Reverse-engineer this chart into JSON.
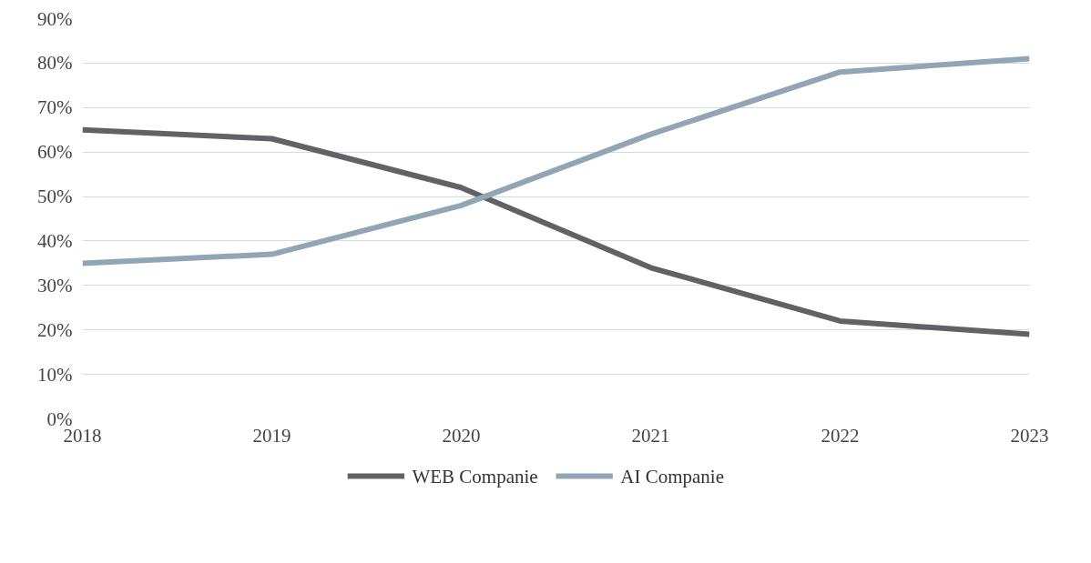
{
  "chart_data": {
    "type": "line",
    "x": [
      2018,
      2019,
      2020,
      2021,
      2022,
      2023
    ],
    "series": [
      {
        "name": "WEB Companie",
        "color": "#616166",
        "values": [
          65,
          63,
          52,
          34,
          22,
          19
        ]
      },
      {
        "name": "AI Companie",
        "color": "#91a6b5",
        "values": [
          35,
          37,
          48,
          64,
          78,
          81
        ]
      }
    ],
    "xlim": [
      2018,
      2023
    ],
    "xticks": [
      2018,
      2019,
      2020,
      2021,
      2022,
      2023
    ],
    "ylim": [
      0,
      90
    ],
    "yticks": [
      {
        "value": 0,
        "label": "0%"
      },
      {
        "value": 10,
        "label": "10%"
      },
      {
        "value": 20,
        "label": "20%"
      },
      {
        "value": 30,
        "label": "30%"
      },
      {
        "value": 40,
        "label": "40%"
      },
      {
        "value": 50,
        "label": "50%"
      },
      {
        "value": 60,
        "label": "60%"
      },
      {
        "value": 70,
        "label": "70%"
      },
      {
        "value": 80,
        "label": "80%"
      },
      {
        "value": 90,
        "label": "90%"
      }
    ],
    "grid": "y",
    "legend": "bottom",
    "line_style": "solid",
    "marker": "none"
  }
}
